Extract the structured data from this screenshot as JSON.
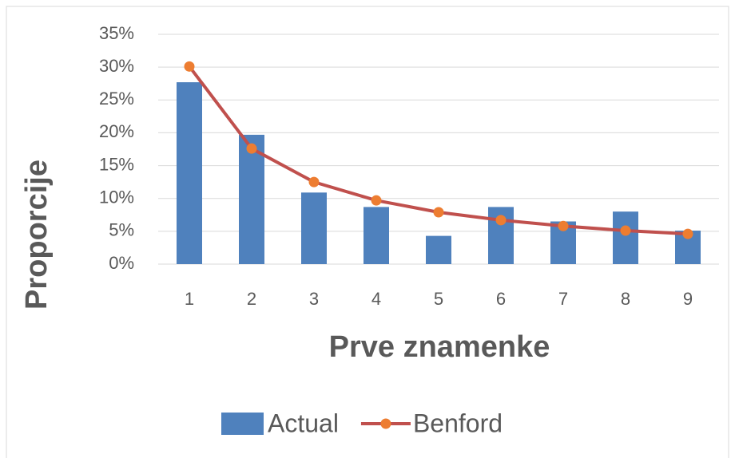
{
  "chart_data": {
    "type": "bar",
    "xlabel": "Prve znamenke",
    "ylabel": "Proporcije",
    "categories": [
      "1",
      "2",
      "3",
      "4",
      "5",
      "6",
      "7",
      "8",
      "9"
    ],
    "series": [
      {
        "name": "Actual",
        "type": "bar",
        "color": "#4f81bd",
        "values": [
          27.7,
          19.7,
          10.9,
          8.7,
          4.3,
          8.7,
          6.5,
          8.0,
          5.1
        ]
      },
      {
        "name": "Benford",
        "type": "line",
        "color": "#c0504d",
        "marker_color": "#ed7d31",
        "values": [
          30.1,
          17.6,
          12.5,
          9.7,
          7.9,
          6.7,
          5.8,
          5.1,
          4.6
        ]
      }
    ],
    "ylim": [
      0,
      35
    ],
    "yticks": [
      {
        "value": 0,
        "label": "0%"
      },
      {
        "value": 5,
        "label": "5%"
      },
      {
        "value": 10,
        "label": "10%"
      },
      {
        "value": 15,
        "label": "15%"
      },
      {
        "value": 20,
        "label": "20%"
      },
      {
        "value": 25,
        "label": "25%"
      },
      {
        "value": 30,
        "label": "30%"
      },
      {
        "value": 35,
        "label": "35%"
      }
    ],
    "grid": true,
    "legend": "bottom"
  }
}
